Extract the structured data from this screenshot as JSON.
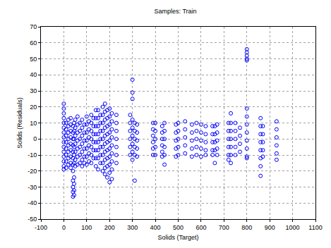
{
  "chart_data": {
    "type": "scatter",
    "title": "Samples: Train",
    "x_label": "Solids (Target)",
    "y_label": "Solids (Residuals)",
    "xlim": [
      -100,
      1100
    ],
    "xticks": [
      -100,
      0,
      100,
      200,
      300,
      400,
      500,
      600,
      700,
      800,
      900,
      1000,
      1100
    ],
    "ylim": [
      -50,
      70
    ],
    "yticks": [
      -50,
      -40,
      -30,
      -20,
      -10,
      0,
      10,
      20,
      30,
      40,
      50,
      60,
      70
    ],
    "grid": true,
    "color": "#0000ff",
    "marker": "circle-open",
    "x": [
      0,
      0,
      0,
      0,
      0,
      0,
      0,
      0,
      0,
      0,
      0,
      0,
      0,
      0,
      0,
      10,
      10,
      10,
      10,
      10,
      10,
      10,
      10,
      20,
      20,
      20,
      20,
      20,
      20,
      20,
      20,
      30,
      30,
      30,
      30,
      30,
      30,
      30,
      30,
      30,
      40,
      40,
      40,
      40,
      40,
      40,
      40,
      40,
      40,
      40,
      40,
      40,
      45,
      45,
      45,
      45,
      45,
      45,
      45,
      45,
      45,
      45,
      50,
      50,
      50,
      50,
      50,
      50,
      50,
      60,
      60,
      60,
      60,
      60,
      60,
      60,
      70,
      70,
      70,
      70,
      70,
      70,
      80,
      80,
      80,
      80,
      80,
      80,
      80,
      90,
      90,
      90,
      90,
      90,
      90,
      100,
      100,
      100,
      100,
      100,
      100,
      100,
      110,
      110,
      110,
      110,
      110,
      110,
      120,
      120,
      120,
      120,
      120,
      120,
      120,
      130,
      130,
      130,
      130,
      130,
      130,
      140,
      140,
      140,
      140,
      140,
      140,
      140,
      140,
      150,
      150,
      150,
      150,
      150,
      150,
      150,
      150,
      160,
      160,
      160,
      160,
      160,
      160,
      160,
      170,
      170,
      170,
      170,
      170,
      170,
      170,
      170,
      170,
      180,
      180,
      180,
      180,
      180,
      180,
      180,
      180,
      180,
      180,
      190,
      190,
      190,
      190,
      190,
      190,
      190,
      190,
      190,
      200,
      200,
      200,
      200,
      200,
      200,
      200,
      200,
      200,
      200,
      210,
      210,
      210,
      210,
      210,
      210,
      210,
      210,
      210,
      230,
      230,
      230,
      230,
      230,
      230,
      230,
      290,
      290,
      290,
      290,
      290,
      290,
      300,
      300,
      300,
      300,
      300,
      300,
      300,
      300,
      300,
      310,
      310,
      310,
      310,
      310,
      310,
      320,
      320,
      320,
      320,
      320,
      390,
      390,
      390,
      390,
      390,
      390,
      400,
      400,
      400,
      400,
      400,
      430,
      430,
      430,
      430,
      430,
      430,
      440,
      440,
      440,
      440,
      440,
      440,
      490,
      490,
      490,
      490,
      490,
      500,
      500,
      500,
      500,
      500,
      530,
      530,
      530,
      530,
      530,
      560,
      560,
      560,
      560,
      560,
      580,
      580,
      580,
      580,
      580,
      600,
      600,
      600,
      600,
      600,
      620,
      620,
      620,
      620,
      620,
      650,
      650,
      650,
      650,
      650,
      660,
      660,
      660,
      660,
      660,
      670,
      670,
      670,
      670,
      670,
      720,
      720,
      720,
      720,
      720,
      720,
      730,
      730,
      730,
      730,
      730,
      730,
      730,
      750,
      750,
      750,
      750,
      750,
      770,
      770,
      770,
      770,
      800,
      800,
      800,
      800,
      800,
      800,
      800,
      800,
      800,
      800,
      800,
      800,
      800,
      860,
      860,
      860,
      860,
      860,
      860,
      860,
      860,
      870,
      870,
      870,
      870,
      870,
      930,
      930,
      930,
      930,
      930,
      930
    ],
    "values": [
      22,
      19,
      16,
      13,
      10,
      7,
      4,
      1,
      -2,
      -5,
      -8,
      -11,
      -14,
      -17,
      -19,
      10,
      6,
      2,
      -2,
      -6,
      -10,
      -14,
      -18,
      12,
      8,
      4,
      0,
      -4,
      -8,
      -12,
      -16,
      13,
      9,
      5,
      1,
      -3,
      -7,
      -11,
      -15,
      -18,
      8,
      4,
      0,
      -4,
      -8,
      -12,
      -16,
      -20,
      -26,
      -30,
      -33,
      -36,
      10,
      5,
      0,
      -5,
      -10,
      -15,
      -24,
      -28,
      -32,
      -35,
      12,
      7,
      2,
      -3,
      -8,
      -13,
      -17,
      14,
      9,
      4,
      -1,
      -6,
      -11,
      -16,
      10,
      5,
      0,
      -5,
      -10,
      -15,
      12,
      7,
      2,
      -3,
      -8,
      -13,
      -17,
      9,
      4,
      -1,
      -6,
      -11,
      -15,
      14,
      9,
      4,
      -1,
      -6,
      -11,
      -16,
      11,
      6,
      1,
      -4,
      -9,
      -14,
      15,
      10,
      5,
      0,
      -5,
      -10,
      -15,
      13,
      8,
      3,
      -2,
      -7,
      -12,
      18,
      13,
      8,
      3,
      -2,
      -7,
      -12,
      -17,
      18,
      13,
      8,
      3,
      -2,
      -7,
      -12,
      -19,
      15,
      10,
      5,
      0,
      -5,
      -10,
      -15,
      20,
      15,
      10,
      5,
      0,
      -5,
      -10,
      -15,
      -20,
      22,
      17,
      12,
      7,
      2,
      -3,
      -8,
      -13,
      -18,
      -22,
      18,
      13,
      8,
      3,
      -2,
      -7,
      -12,
      -17,
      -24,
      19,
      14,
      9,
      4,
      -1,
      -6,
      -11,
      -16,
      -21,
      -27,
      16,
      11,
      6,
      1,
      -4,
      -9,
      -14,
      -19,
      -25,
      15,
      10,
      5,
      0,
      -5,
      -10,
      -15,
      15,
      10,
      5,
      0,
      -5,
      -10,
      37,
      29,
      25,
      12,
      7,
      2,
      -3,
      -8,
      -13,
      10,
      5,
      0,
      -5,
      -10,
      -26,
      9,
      4,
      -1,
      -6,
      -11,
      10,
      6,
      2,
      -2,
      -6,
      -10,
      10,
      5,
      0,
      -5,
      -10,
      8,
      4,
      0,
      -4,
      -8,
      -11,
      10,
      5,
      0,
      -5,
      -10,
      -16,
      9,
      4,
      -1,
      -6,
      -11,
      10,
      5,
      0,
      -5,
      -10,
      11,
      6,
      1,
      -4,
      -9,
      9,
      4,
      -1,
      -6,
      -11,
      10,
      5,
      0,
      -5,
      -10,
      9,
      4,
      -1,
      -6,
      -11,
      8,
      3,
      -2,
      -7,
      -10,
      8,
      3,
      -2,
      -7,
      -10,
      8,
      3,
      -2,
      -7,
      -15,
      9,
      4,
      -1,
      -6,
      -10,
      10,
      5,
      0,
      -5,
      -10,
      -13,
      16,
      10,
      5,
      0,
      -5,
      -10,
      -15,
      10,
      5,
      0,
      -5,
      -10,
      7,
      2,
      -3,
      -8,
      56,
      54,
      52,
      50,
      49,
      19,
      14,
      9,
      4,
      -1,
      -6,
      -11,
      -12,
      13,
      8,
      3,
      -2,
      -7,
      -12,
      -17,
      -23,
      8,
      3,
      -2,
      -7,
      -11,
      11,
      6,
      1,
      -4,
      -9,
      -13
    ]
  }
}
